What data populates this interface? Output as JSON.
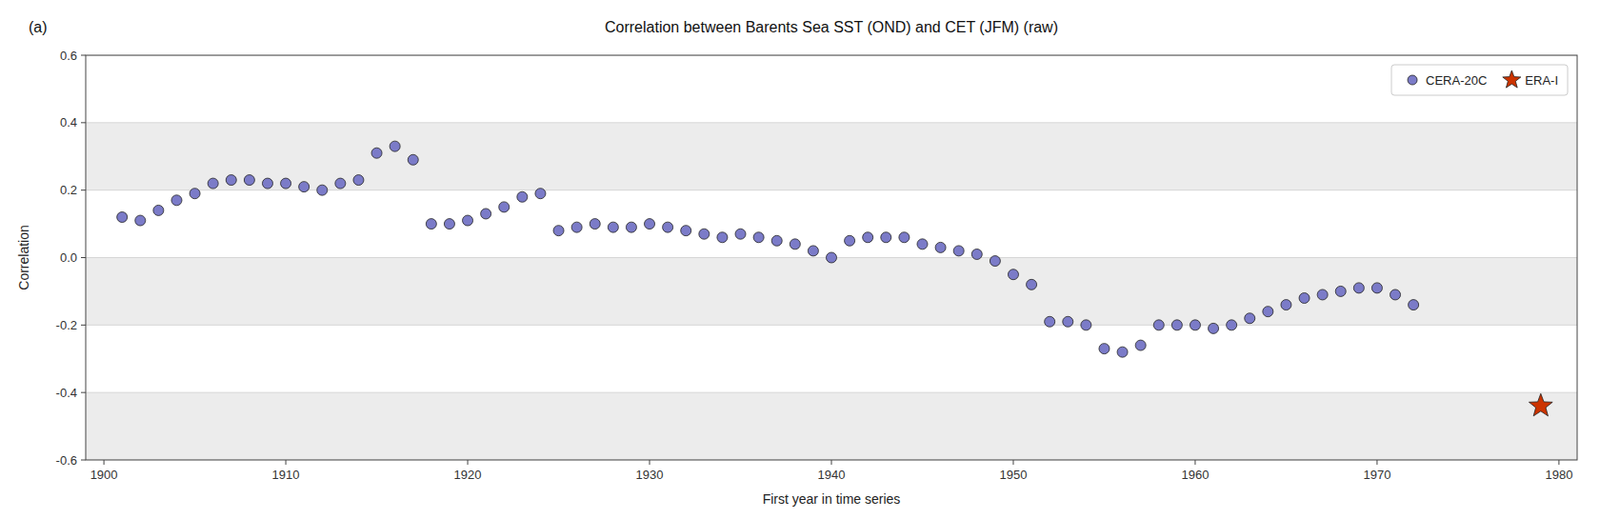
{
  "chart_data": {
    "type": "scatter",
    "title": "Correlation between Barents Sea SST (OND) and CET (JFM) (raw)",
    "x_label": "First year in time series",
    "y_label": "Correlation",
    "annotations": [
      "(a)"
    ],
    "xlim": [
      1899,
      1981
    ],
    "ylim": [
      -0.6,
      0.6
    ],
    "xticks": [
      1900,
      1910,
      1920,
      1930,
      1940,
      1950,
      1960,
      1970,
      1980
    ],
    "yticks": [
      -0.6,
      -0.4,
      -0.2,
      {
        "value": 0.0,
        "label": "0.0"
      },
      0.2,
      0.4,
      0.6
    ],
    "grid": true,
    "legend": "upper-right",
    "series": [
      {
        "name": "CERA-20C",
        "color": "#7b7bc8",
        "marker": "circle",
        "x": [
          1901,
          1902,
          1903,
          1904,
          1905,
          1906,
          1907,
          1908,
          1909,
          1910,
          1911,
          1912,
          1913,
          1914,
          1915,
          1916,
          1917,
          1918,
          1919,
          1920,
          1921,
          1922,
          1923,
          1924,
          1925,
          1926,
          1927,
          1928,
          1929,
          1930,
          1931,
          1932,
          1933,
          1934,
          1935,
          1936,
          1937,
          1938,
          1939,
          1940,
          1941,
          1942,
          1943,
          1944,
          1945,
          1946,
          1947,
          1948,
          1949,
          1950,
          1951,
          1952,
          1953,
          1954,
          1955,
          1956,
          1957,
          1958,
          1959,
          1960,
          1961,
          1962,
          1963,
          1964,
          1965,
          1966,
          1967,
          1968,
          1969,
          1970,
          1971,
          1972
        ],
        "values": [
          0.12,
          0.11,
          0.14,
          0.17,
          0.19,
          0.22,
          0.23,
          0.23,
          0.22,
          0.22,
          0.21,
          0.2,
          0.22,
          0.23,
          0.31,
          0.33,
          0.29,
          0.1,
          0.1,
          0.11,
          0.13,
          0.15,
          0.18,
          0.19,
          0.08,
          0.09,
          0.1,
          0.09,
          0.09,
          0.1,
          0.09,
          0.08,
          0.07,
          0.06,
          0.07,
          0.06,
          0.05,
          0.04,
          0.02,
          0.0,
          0.05,
          0.06,
          0.06,
          0.06,
          0.04,
          0.03,
          0.02,
          0.01,
          -0.01,
          -0.05,
          -0.08,
          -0.19,
          -0.19,
          -0.2,
          -0.27,
          -0.28,
          -0.26,
          -0.2,
          -0.2,
          -0.2,
          -0.21,
          -0.2,
          -0.18,
          -0.16,
          -0.14,
          -0.12,
          -0.11,
          -0.1,
          -0.09,
          -0.09,
          -0.11,
          -0.14
        ]
      },
      {
        "name": "ERA-I",
        "color": "#cc3300",
        "marker": "star",
        "x": [
          1979
        ],
        "values": [
          -0.44
        ]
      }
    ]
  }
}
